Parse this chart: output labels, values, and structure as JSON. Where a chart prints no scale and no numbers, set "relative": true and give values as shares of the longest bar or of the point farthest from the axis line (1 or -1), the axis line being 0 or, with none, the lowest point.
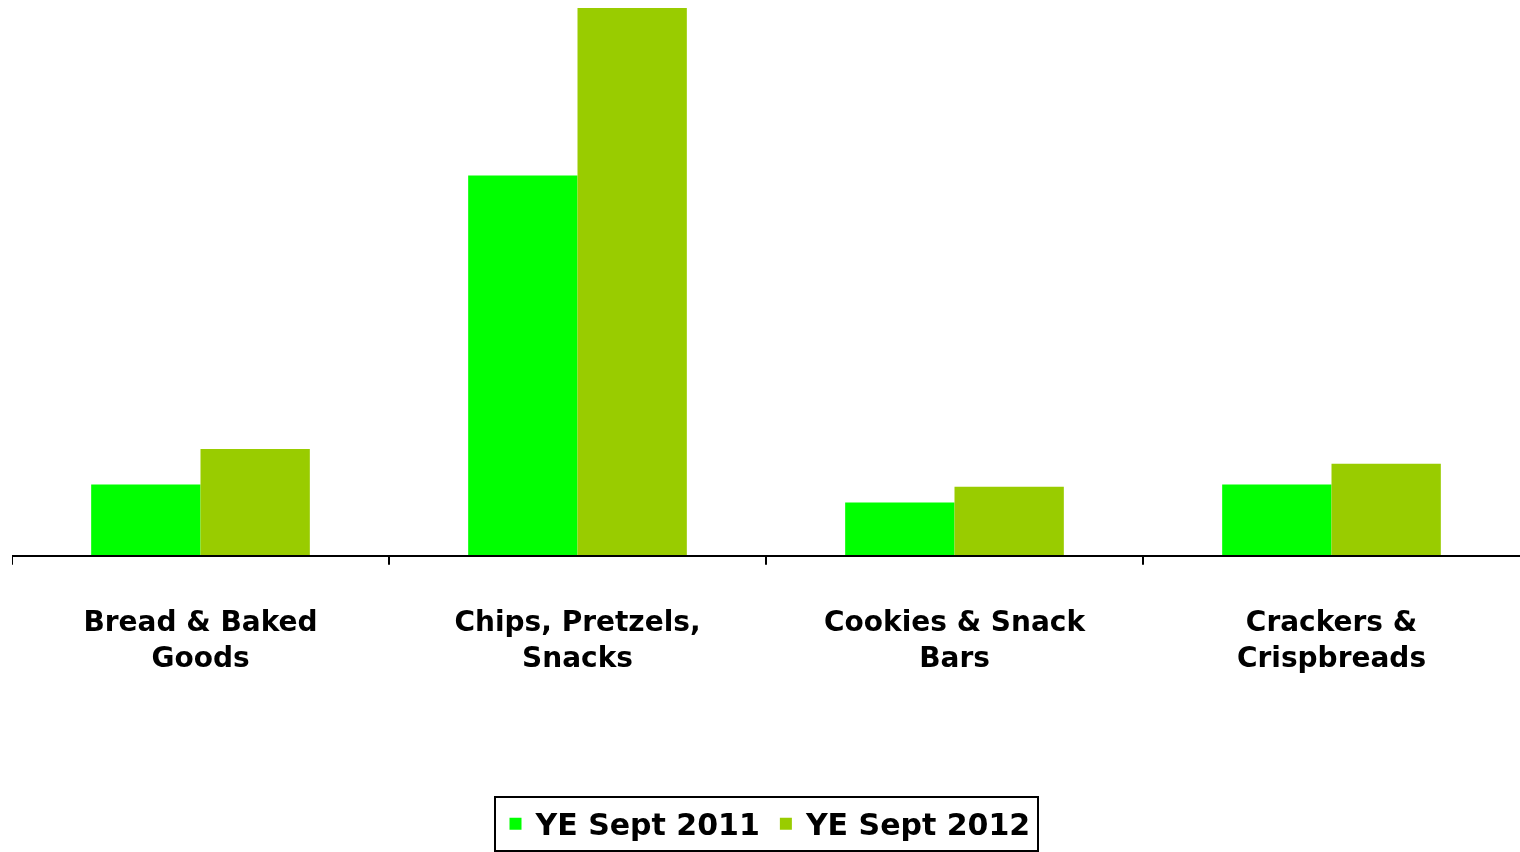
{
  "chart_data": {
    "type": "bar",
    "relative": true,
    "categories": [
      "Bread & Baked Goods",
      "Chips, Pretzels, Snacks",
      "Cookies & Snack Bars",
      "Crackers & Crispbreads"
    ],
    "series": [
      {
        "name": "YE Sept 2011",
        "color": "#00ff00",
        "values": [
          0.129,
          0.694,
          0.096,
          0.129
        ]
      },
      {
        "name": "YE Sept 2012",
        "color": "#99cc00",
        "values": [
          0.194,
          1,
          0.125,
          0.167
        ]
      }
    ],
    "legend": "bottom"
  }
}
